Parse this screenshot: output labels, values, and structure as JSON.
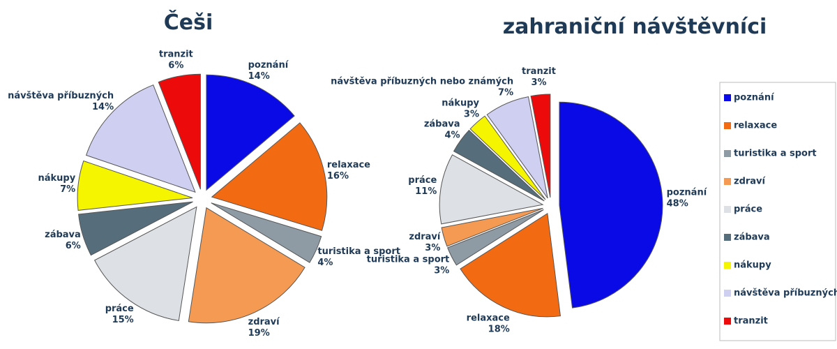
{
  "chart_data": [
    {
      "type": "pie",
      "title": "Češi",
      "categories": [
        "poznání",
        "relaxace",
        "turistika a sport",
        "zdraví",
        "práce",
        "zábava",
        "nákupy",
        "návštěva příbuzných",
        "tranzit"
      ],
      "values": [
        14,
        16,
        4,
        19,
        15,
        6,
        7,
        14,
        6
      ],
      "value_labels": [
        "14%",
        "16%",
        "4%",
        "19%",
        "15%",
        "6%",
        "7%",
        "14%",
        "6%"
      ],
      "colors": [
        "#0a0ae6",
        "#f26a12",
        "#8e9ba4",
        "#f59a52",
        "#dde1e5",
        "#566e7c",
        "#f5f500",
        "#cfcff2",
        "#ec0a0a"
      ]
    },
    {
      "type": "pie",
      "title": "zahraniční návštěvníci",
      "categories": [
        "poznání",
        "relaxace",
        "turistika a sport",
        "zdraví",
        "práce",
        "zábava",
        "nákupy",
        "návštěva příbuzných nebo známých",
        "tranzit"
      ],
      "values": [
        48,
        18,
        3,
        3,
        11,
        4,
        3,
        7,
        3
      ],
      "value_labels": [
        "48%",
        "18%",
        "3%",
        "3%",
        "11%",
        "4%",
        "3%",
        "7%",
        "3%"
      ],
      "colors": [
        "#0a0ae6",
        "#f26a12",
        "#8e9ba4",
        "#f59a52",
        "#dde1e5",
        "#566e7c",
        "#f5f500",
        "#cfcff2",
        "#ec0a0a"
      ],
      "legend": "right"
    }
  ]
}
